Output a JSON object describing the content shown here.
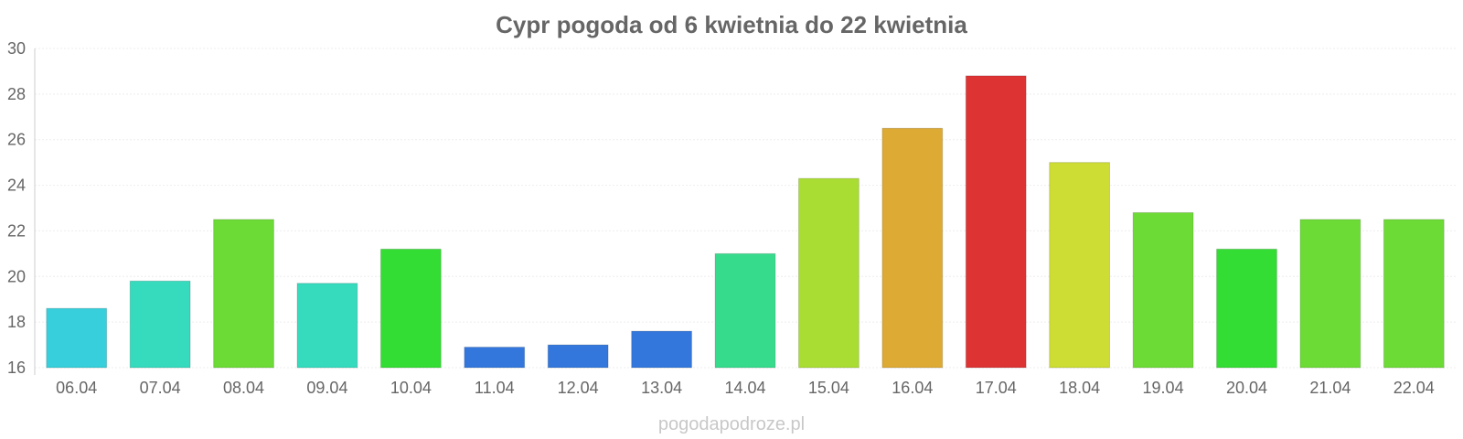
{
  "chart_data": {
    "type": "bar",
    "title": "Cypr pogoda od 6 kwietnia do 22 kwietnia",
    "xlabel": "",
    "ylabel": "",
    "categories": [
      "06.04",
      "07.04",
      "08.04",
      "09.04",
      "10.04",
      "11.04",
      "12.04",
      "13.04",
      "14.04",
      "15.04",
      "16.04",
      "17.04",
      "18.04",
      "19.04",
      "20.04",
      "21.04",
      "22.04"
    ],
    "values": [
      18.6,
      19.8,
      22.5,
      19.7,
      21.2,
      16.9,
      17.0,
      17.6,
      21.0,
      24.3,
      26.5,
      28.8,
      25.0,
      22.8,
      21.2,
      22.5,
      22.5
    ],
    "colors": [
      "#36cfdb",
      "#36dbbd",
      "#6ddb36",
      "#36dbbd",
      "#33dd33",
      "#3377dd",
      "#3377dd",
      "#3377dd",
      "#36db8c",
      "#aadd33",
      "#ddaa33",
      "#dd3333",
      "#cddd33",
      "#6ddb36",
      "#33dd33",
      "#6ddb36",
      "#6ddb36"
    ],
    "ylim": [
      16,
      30
    ],
    "yticks": [
      16,
      18,
      20,
      22,
      24,
      26,
      28,
      30
    ],
    "grid": true,
    "legend": "none"
  },
  "watermark": "pogodapodroze.pl"
}
